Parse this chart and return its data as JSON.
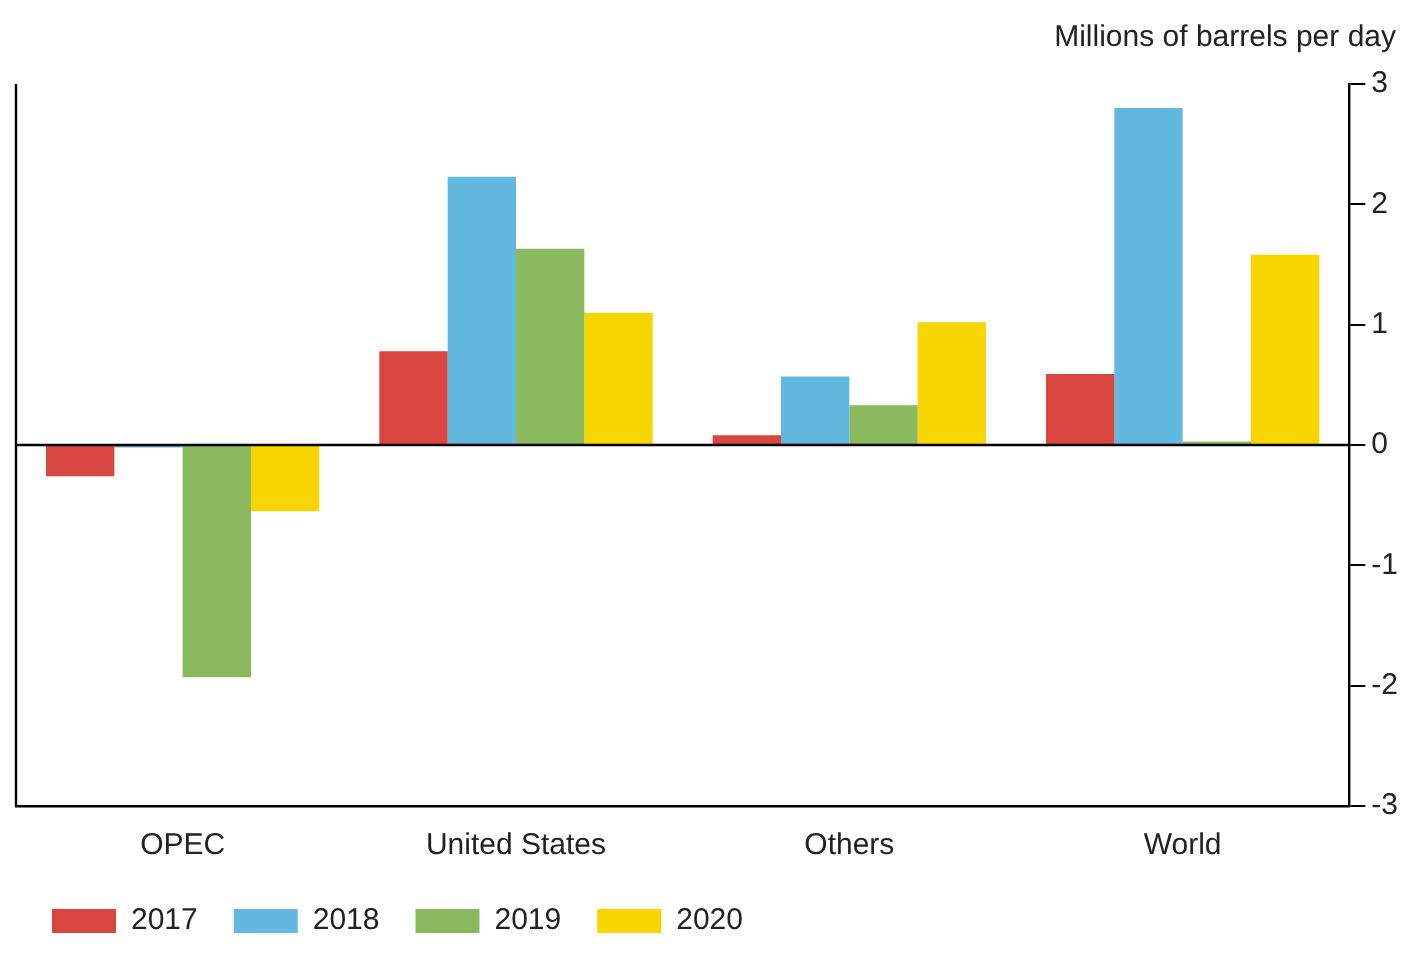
{
  "chart_data": {
    "type": "bar",
    "ylabel": "Millions of barrels per day",
    "categories": [
      "OPEC",
      "United States",
      "Others",
      "World"
    ],
    "series": [
      {
        "name": "2017",
        "color": "#d9463f",
        "values": [
          -0.26,
          0.78,
          0.08,
          0.59
        ]
      },
      {
        "name": "2018",
        "color": "#63b8df",
        "values": [
          -0.02,
          2.23,
          0.57,
          2.8
        ]
      },
      {
        "name": "2019",
        "color": "#8bb960",
        "values": [
          -1.93,
          1.63,
          0.33,
          0.03
        ]
      },
      {
        "name": "2020",
        "color": "#f7d500",
        "values": [
          -0.55,
          1.1,
          1.02,
          1.58
        ]
      }
    ],
    "ylim": [
      -3,
      3
    ],
    "yticks": [
      -3,
      -2,
      -1,
      0,
      1,
      2,
      3
    ],
    "grid": false,
    "legend": "bottom left",
    "ref_lines": [
      {
        "axis": "y",
        "value": 0
      }
    ]
  }
}
